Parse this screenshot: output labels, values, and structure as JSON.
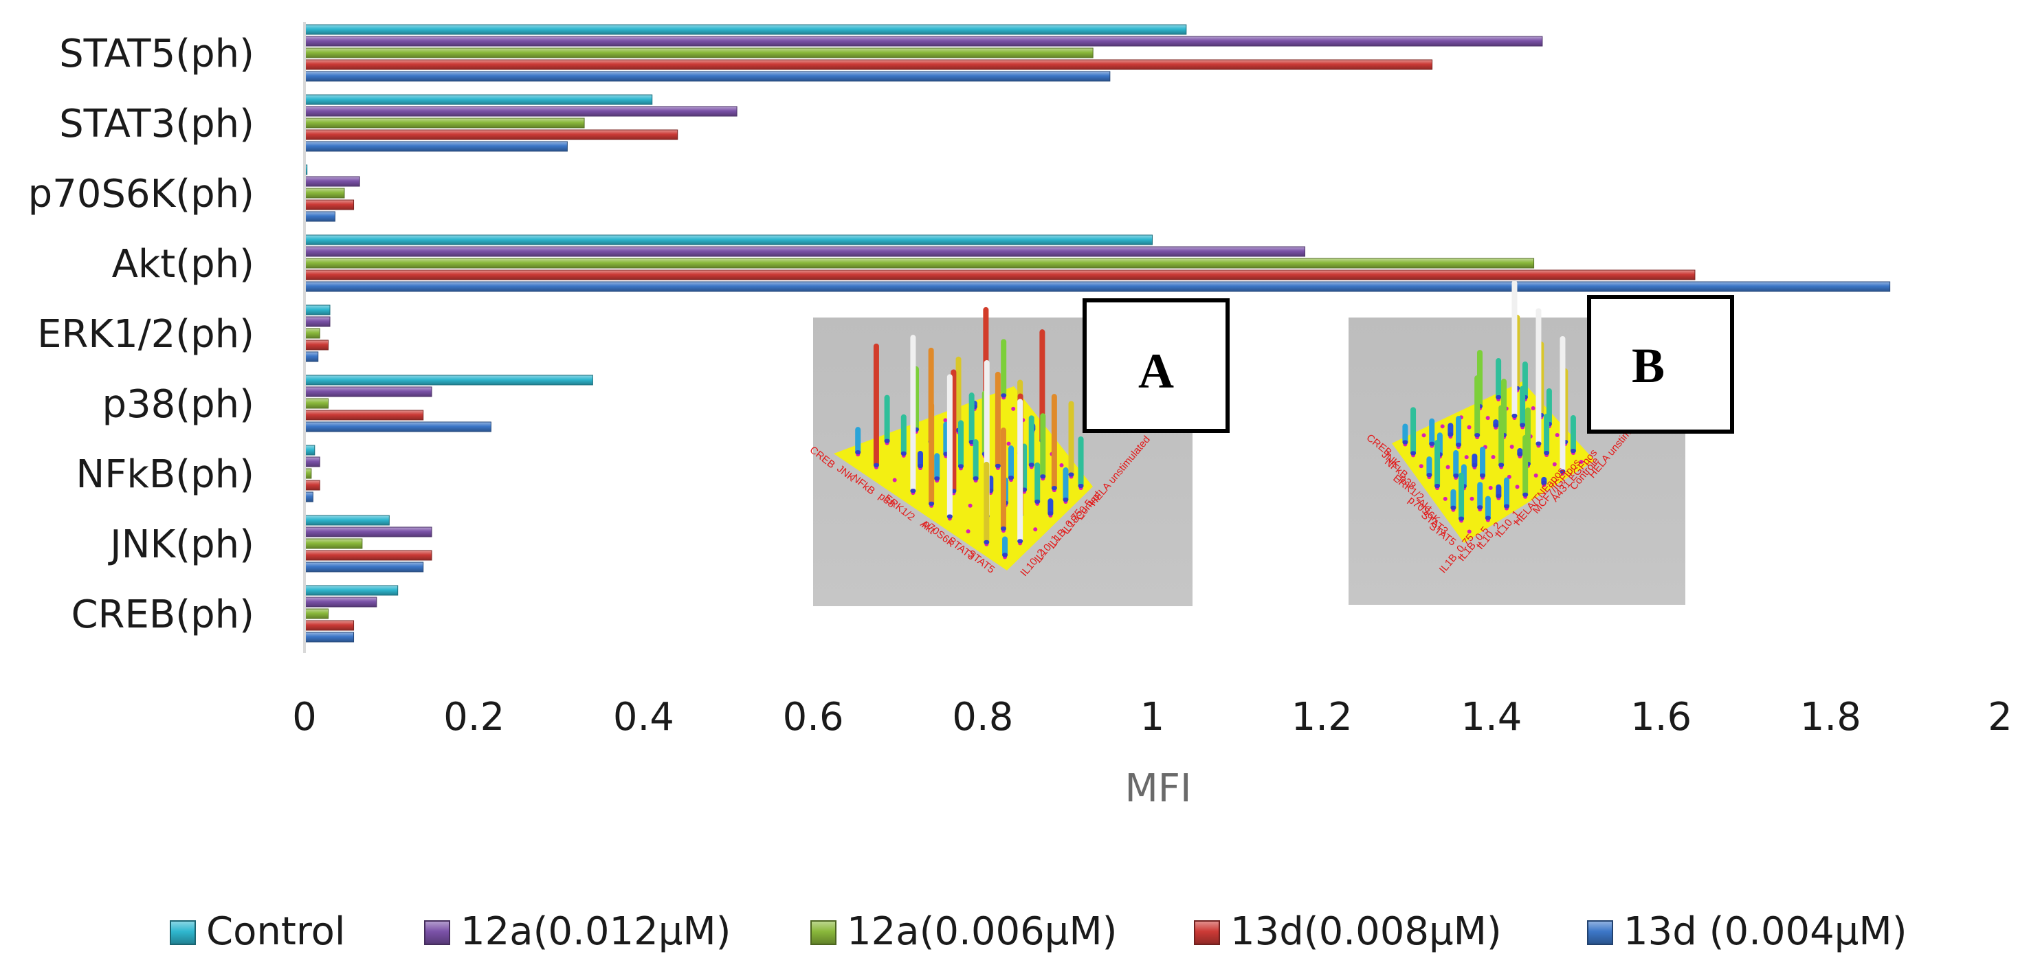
{
  "chart_data": {
    "type": "bar",
    "orientation": "horizontal",
    "title": "",
    "xlabel": "MFI",
    "ylabel": "",
    "xlim": [
      0,
      2
    ],
    "x_ticks": [
      "0",
      "0.2",
      "0.4",
      "0.6",
      "0.8",
      "1",
      "1.2",
      "1.4",
      "1.6",
      "1.8",
      "2"
    ],
    "grid": false,
    "legend_position": "bottom",
    "categories": [
      "STAT5(ph)",
      "STAT3(ph)",
      "p70S6K(ph)",
      "Akt(ph)",
      "ERK1/2(ph)",
      "p38(ph)",
      "NFkB(ph)",
      "JNK(ph)",
      "CREB(ph)"
    ],
    "series": [
      {
        "name": "Control",
        "color": "#2fb7cf",
        "values": [
          1.04,
          0.41,
          0.003,
          1.0,
          0.03,
          0.34,
          0.012,
          0.1,
          0.11
        ]
      },
      {
        "name": "12a(0.012μM)",
        "color": "#7b52a8",
        "values": [
          1.46,
          0.51,
          0.065,
          1.18,
          0.03,
          0.15,
          0.018,
          0.15,
          0.085
        ]
      },
      {
        "name": "12a(0.006μM)",
        "color": "#8ab83b",
        "values": [
          0.93,
          0.33,
          0.047,
          1.45,
          0.018,
          0.028,
          0.008,
          0.068,
          0.028
        ]
      },
      {
        "name": "13d(0.008μM)",
        "color": "#cc3a36",
        "values": [
          1.33,
          0.44,
          0.058,
          1.64,
          0.028,
          0.14,
          0.018,
          0.15,
          0.058
        ]
      },
      {
        "name": "13d (0.004μM)",
        "color": "#3c77c8",
        "values": [
          0.95,
          0.31,
          0.036,
          1.87,
          0.016,
          0.22,
          0.01,
          0.14,
          0.058
        ]
      }
    ],
    "insets": [
      {
        "letter": "A",
        "row_labels": [
          "CREB",
          "JNK",
          "NFkB",
          "p38",
          "ERK1/2",
          "Akt",
          "p70S6K",
          "STAT3",
          "STAT5"
        ],
        "column_labels": [
          "HELA unstimulated",
          "Control",
          "IL1B_0.5",
          "IL1B_0.75",
          "IL10_1",
          "IL10_2"
        ]
      },
      {
        "letter": "B",
        "row_labels": [
          "CREB",
          "JNK",
          "NFkB",
          "p38",
          "ERK1/2",
          "Akt",
          "p70S6K",
          "STAT3",
          "STAT5"
        ],
        "column_labels": [
          "HELA unstimulated",
          "Controle",
          "A431 EGFpos",
          "MCF7/IGFIpos",
          "HELA/TNFapos",
          "IL10_1",
          "IL10_2",
          "IL1B_0.5",
          "IL1B_0.75"
        ]
      }
    ]
  }
}
